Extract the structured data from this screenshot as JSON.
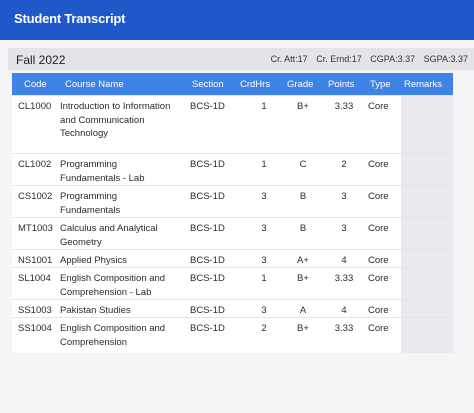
{
  "header": {
    "title": "Student Transcript"
  },
  "term": {
    "name": "Fall 2022",
    "cr_att": "Cr. Att:17",
    "cr_ernd": "Cr. Ernd:17",
    "cgpa": "CGPA:3.37",
    "sgpa": "SGPA:3.37"
  },
  "columns": {
    "code": "Code",
    "name": "Course Name",
    "section": "Section",
    "crdhrs": "CrdHrs",
    "grade": "Grade",
    "points": "Points",
    "type": "Type",
    "remarks": "Remarks"
  },
  "rows": [
    {
      "code": "CL1000",
      "name": "Introduction to Information and Communication Technology",
      "section": "BCS-1D",
      "crdhrs": "1",
      "grade": "B+",
      "points": "3.33",
      "type": "Core"
    },
    {
      "code": "CL1002",
      "name": "Programming Fundamentals - Lab",
      "section": "BCS-1D",
      "crdhrs": "1",
      "grade": "C",
      "points": "2",
      "type": "Core"
    },
    {
      "code": "CS1002",
      "name": "Programming Fundamentals",
      "section": "BCS-1D",
      "crdhrs": "3",
      "grade": "B",
      "points": "3",
      "type": "Core"
    },
    {
      "code": "MT1003",
      "name": "Calculus and Analytical Geometry",
      "section": "BCS-1D",
      "crdhrs": "3",
      "grade": "B",
      "points": "3",
      "type": "Core"
    },
    {
      "code": "NS1001",
      "name": "Applied Physics",
      "section": "BCS-1D",
      "crdhrs": "3",
      "grade": "A+",
      "points": "4",
      "type": "Core"
    },
    {
      "code": "SL1004",
      "name": "English Composition and Comprehension - Lab",
      "section": "BCS-1D",
      "crdhrs": "1",
      "grade": "B+",
      "points": "3.33",
      "type": "Core"
    },
    {
      "code": "SS1003",
      "name": "Pakistan Studies",
      "section": "BCS-1D",
      "crdhrs": "3",
      "grade": "A",
      "points": "4",
      "type": "Core"
    },
    {
      "code": "SS1004",
      "name": "English Composition and Comprehension",
      "section": "BCS-1D",
      "crdhrs": "2",
      "grade": "B+",
      "points": "3.33",
      "type": "Core"
    }
  ]
}
